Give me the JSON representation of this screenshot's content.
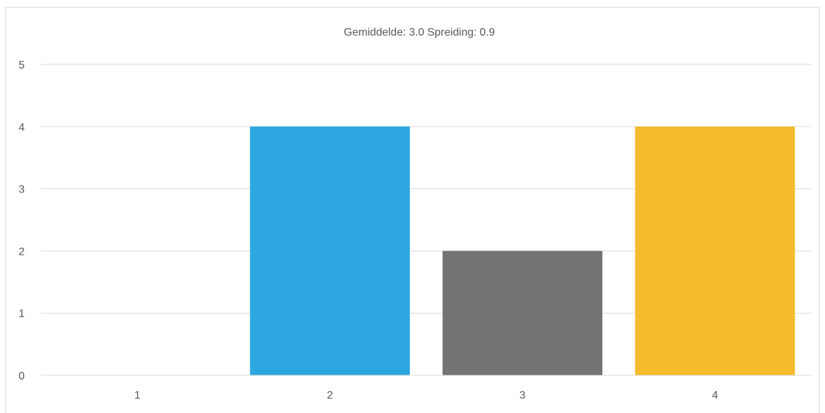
{
  "chart_data": {
    "type": "bar",
    "title": "Gemiddelde: 3.0  Spreiding: 0.9",
    "categories": [
      "1",
      "2",
      "3",
      "4"
    ],
    "values": [
      0,
      4,
      2,
      4
    ],
    "colors": [
      "#2ca7df",
      "#2ca7df",
      "#757273",
      "#f4bc2c"
    ],
    "ylim": [
      0,
      5
    ],
    "yticks": [
      "0",
      "1",
      "2",
      "3",
      "4",
      "5"
    ],
    "grid": true,
    "legend": "none"
  }
}
